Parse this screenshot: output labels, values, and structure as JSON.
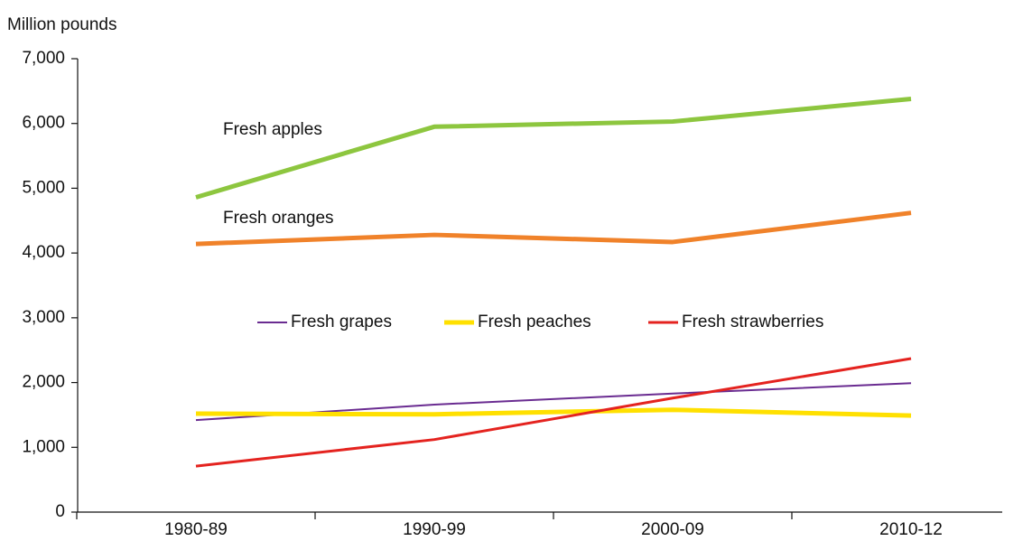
{
  "chart_data": {
    "type": "line",
    "y_label": "Million pounds",
    "categories": [
      "1980-89",
      "1990-99",
      "2000-09",
      "2010-12"
    ],
    "series": [
      {
        "name": "Fresh apples",
        "color": "#8dc63f",
        "values": [
          4860,
          5950,
          6030,
          6380
        ]
      },
      {
        "name": "Fresh oranges",
        "color": "#f0822a",
        "values": [
          4140,
          4280,
          4170,
          4620
        ]
      },
      {
        "name": "Fresh grapes",
        "color": "#6a2c91",
        "values": [
          1420,
          1660,
          1830,
          1990
        ]
      },
      {
        "name": "Fresh peaches",
        "color": "#ffe000",
        "values": [
          1520,
          1510,
          1580,
          1490
        ]
      },
      {
        "name": "Fresh strawberries",
        "color": "#e4231f",
        "values": [
          710,
          1120,
          1760,
          2370
        ]
      }
    ],
    "ylim": [
      0,
      7000
    ],
    "yticks": [
      0,
      {
        "value": 1000,
        "label": "1,000"
      },
      {
        "value": 2000,
        "label": "2,000"
      },
      {
        "value": 3000,
        "label": "3,000"
      },
      {
        "value": 4000,
        "label": "4,000"
      },
      {
        "value": 5000,
        "label": "5,000"
      },
      {
        "value": 6000,
        "label": "6,000"
      },
      {
        "value": 7000,
        "label": "7,000"
      }
    ],
    "grid": false
  }
}
